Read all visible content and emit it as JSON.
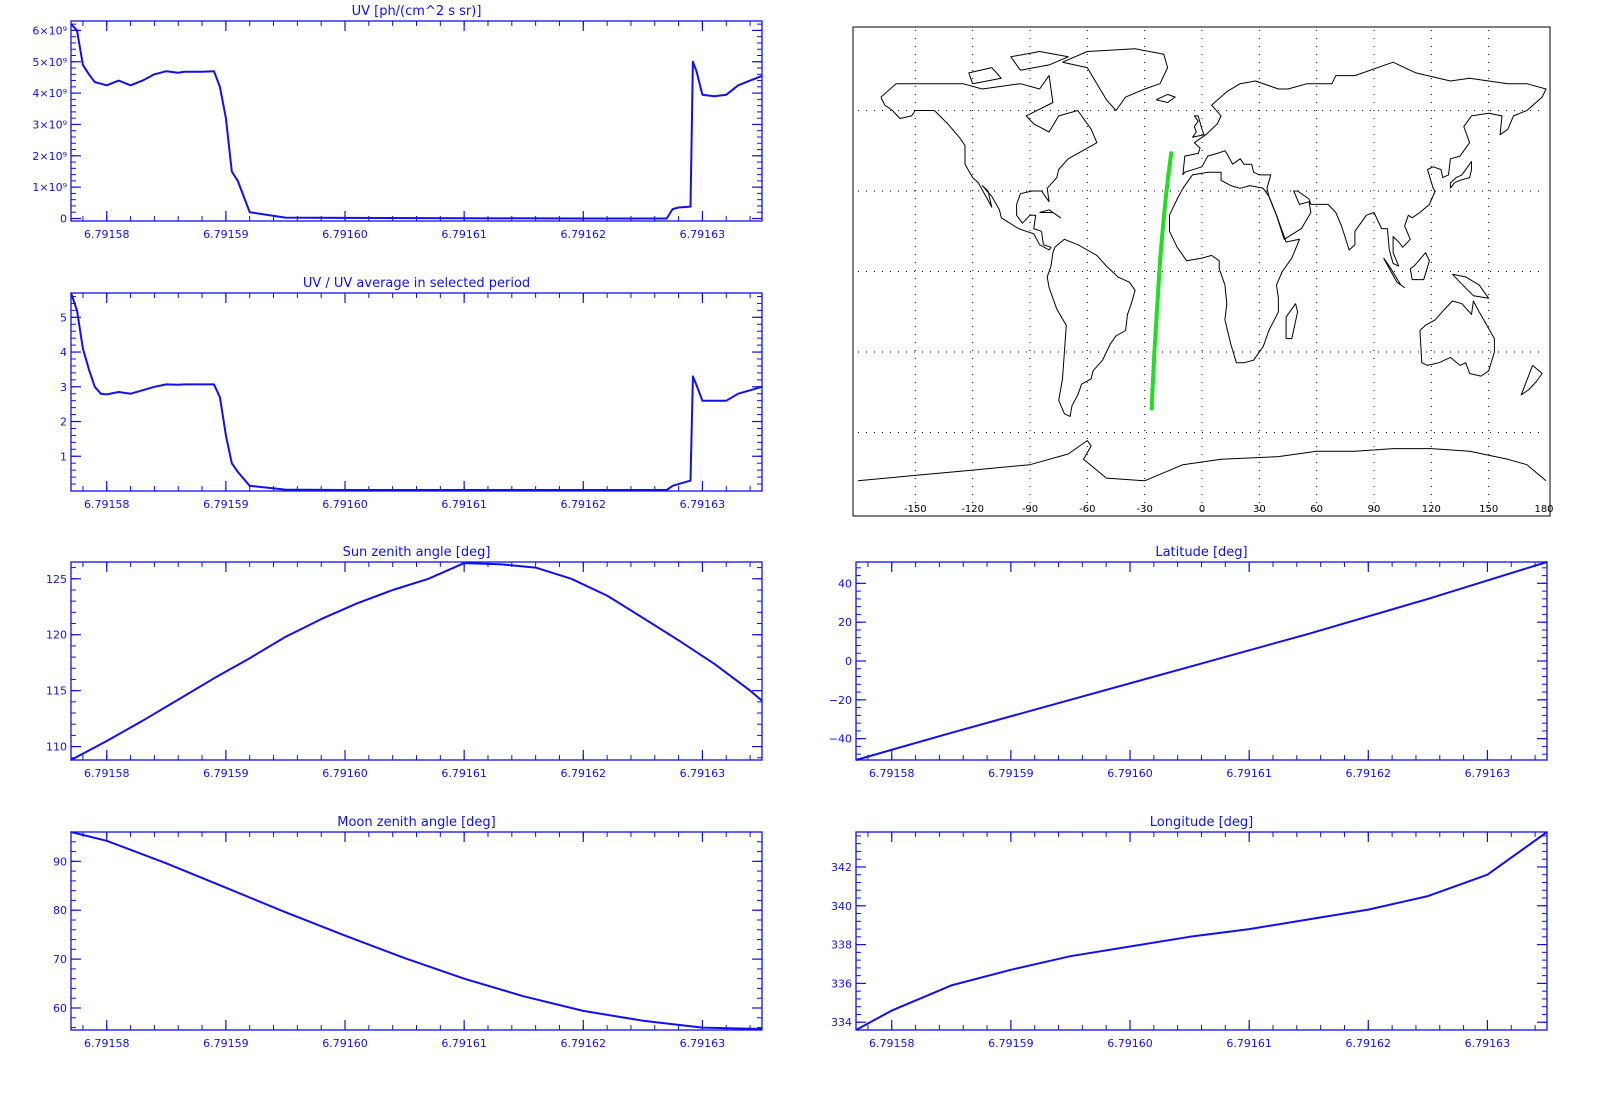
{
  "colors": {
    "plot": "#1010ee",
    "track": "#22dd22",
    "coast": "#000000",
    "grid": "#000000"
  },
  "chart_data": [
    {
      "id": "uv",
      "type": "line",
      "title": "UV [ph/(cm^2 s sr)]",
      "xlabel": "",
      "ylabel": "",
      "xlim": [
        6.791577,
        6.791635
      ],
      "ylim": [
        -80000000,
        6300000000
      ],
      "xticks": [
        6.79158,
        6.79159,
        6.7916,
        6.79161,
        6.79162,
        6.79163
      ],
      "xtick_labels": [
        "6.79158",
        "6.79159",
        "6.79160",
        "6.79161",
        "6.79162",
        "6.79163"
      ],
      "yticks": [
        0,
        1000000000,
        2000000000,
        3000000000,
        4000000000,
        5000000000,
        6000000000
      ],
      "ytick_labels": [
        "0",
        "1×10⁹",
        "2×10⁹",
        "3×10⁹",
        "4×10⁹",
        "5×10⁹",
        "6×10⁹"
      ],
      "grid": false,
      "series": [
        {
          "x": [
            6.791577,
            6.7915775,
            6.791578,
            6.7915785,
            6.791579,
            6.7915795,
            6.79158,
            6.791581,
            6.791582,
            6.791583,
            6.791584,
            6.791585,
            6.791586,
            6.7915865,
            6.791587,
            6.791588,
            6.791589,
            6.7915895,
            6.79159,
            6.7915905,
            6.791591,
            6.791592,
            6.791595,
            6.7916,
            6.79162,
            6.791627,
            6.7916275,
            6.791628,
            6.791629,
            6.7916292,
            6.7916295,
            6.79163,
            6.791631,
            6.791632,
            6.791633,
            6.791634,
            6.791635
          ],
          "y": [
            6200000000,
            6000000000,
            4900000000,
            4600000000,
            4350000000,
            4300000000,
            4250000000,
            4400000000,
            4250000000,
            4400000000,
            4600000000,
            4700000000,
            4650000000,
            4680000000,
            4680000000,
            4680000000,
            4700000000,
            4200000000,
            3200000000,
            1500000000,
            1200000000,
            200000000,
            30000000,
            20000000,
            0,
            0,
            300000000,
            350000000,
            380000000,
            5000000000,
            4700000000,
            3950000000,
            3900000000,
            3950000000,
            4250000000,
            4400000000,
            4550000000
          ]
        }
      ]
    },
    {
      "id": "uvratio",
      "type": "line",
      "title": "UV / UV average in selected period",
      "xlabel": "",
      "ylabel": "",
      "xlim": [
        6.791577,
        6.791635
      ],
      "ylim": [
        0,
        5.7
      ],
      "xticks": [
        6.79158,
        6.79159,
        6.7916,
        6.79161,
        6.79162,
        6.79163
      ],
      "xtick_labels": [
        "6.79158",
        "6.79159",
        "6.79160",
        "6.79161",
        "6.79162",
        "6.79163"
      ],
      "yticks": [
        1,
        2,
        3,
        4,
        5
      ],
      "ytick_labels": [
        "1",
        "2",
        "3",
        "4",
        "5"
      ],
      "grid": false,
      "series": [
        {
          "x": [
            6.791577,
            6.7915775,
            6.791578,
            6.7915785,
            6.791579,
            6.7915795,
            6.79158,
            6.791581,
            6.791582,
            6.791583,
            6.791584,
            6.791585,
            6.791586,
            6.7915865,
            6.791587,
            6.791588,
            6.791589,
            6.7915895,
            6.79159,
            6.7915905,
            6.791591,
            6.791592,
            6.791595,
            6.7916,
            6.79162,
            6.791627,
            6.7916275,
            6.791628,
            6.791629,
            6.7916292,
            6.7916295,
            6.79163,
            6.791631,
            6.791632,
            6.791633,
            6.791634,
            6.791635
          ],
          "y": [
            5.7,
            5.2,
            4.1,
            3.5,
            3.0,
            2.8,
            2.78,
            2.85,
            2.8,
            2.9,
            3.0,
            3.07,
            3.06,
            3.07,
            3.07,
            3.07,
            3.07,
            2.7,
            1.6,
            0.8,
            0.55,
            0.15,
            0.04,
            0.03,
            0.03,
            0.03,
            0.15,
            0.2,
            0.3,
            3.3,
            3.05,
            2.6,
            2.6,
            2.6,
            2.8,
            2.9,
            3.0
          ]
        }
      ]
    },
    {
      "id": "sza",
      "type": "line",
      "title": "Sun zenith angle [deg]",
      "xlabel": "",
      "ylabel": "",
      "xlim": [
        6.791577,
        6.791635
      ],
      "ylim": [
        108.8,
        126.5
      ],
      "xticks": [
        6.79158,
        6.79159,
        6.7916,
        6.79161,
        6.79162,
        6.79163
      ],
      "xtick_labels": [
        "6.79158",
        "6.79159",
        "6.79160",
        "6.79161",
        "6.79162",
        "6.79163"
      ],
      "yticks": [
        110,
        115,
        120,
        125
      ],
      "ytick_labels": [
        "110",
        "115",
        "120",
        "125"
      ],
      "grid": false,
      "series": [
        {
          "x": [
            6.791577,
            6.79158,
            6.791583,
            6.791586,
            6.791589,
            6.791592,
            6.791595,
            6.791598,
            6.791601,
            6.791604,
            6.791607,
            6.79161,
            6.791613,
            6.791616,
            6.791619,
            6.791622,
            6.791625,
            6.791628,
            6.791631,
            6.791634,
            6.791635
          ],
          "y": [
            108.8,
            110.5,
            112.3,
            114.2,
            116.1,
            117.9,
            119.8,
            121.4,
            122.8,
            124.0,
            125.0,
            126.4,
            126.3,
            126.0,
            125.0,
            123.5,
            121.5,
            119.5,
            117.4,
            115.0,
            114.1
          ]
        }
      ]
    },
    {
      "id": "lat",
      "type": "line",
      "title": "Latitude [deg]",
      "xlabel": "",
      "ylabel": "",
      "xlim": [
        6.791577,
        6.791635
      ],
      "ylim": [
        -51,
        51
      ],
      "xticks": [
        6.79158,
        6.79159,
        6.7916,
        6.79161,
        6.79162,
        6.79163
      ],
      "xtick_labels": [
        "6.79158",
        "6.79159",
        "6.79160",
        "6.79161",
        "6.79162",
        "6.79163"
      ],
      "yticks": [
        -40,
        -20,
        0,
        20,
        40
      ],
      "ytick_labels": [
        "−40",
        "−20",
        "0",
        "20",
        "40"
      ],
      "grid": false,
      "series": [
        {
          "x": [
            6.791577,
            6.791585,
            6.791595,
            6.791605,
            6.791615,
            6.791625,
            6.791635
          ],
          "y": [
            -51,
            -37,
            -20,
            -3,
            14,
            32,
            51
          ]
        }
      ]
    },
    {
      "id": "mza",
      "type": "line",
      "title": "Moon zenith angle [deg]",
      "xlabel": "",
      "ylabel": "",
      "xlim": [
        6.791577,
        6.791635
      ],
      "ylim": [
        55.5,
        96
      ],
      "xticks": [
        6.79158,
        6.79159,
        6.7916,
        6.79161,
        6.79162,
        6.79163
      ],
      "xtick_labels": [
        "6.79158",
        "6.79159",
        "6.79160",
        "6.79161",
        "6.79162",
        "6.79163"
      ],
      "yticks": [
        60,
        70,
        80,
        90
      ],
      "ytick_labels": [
        "60",
        "70",
        "80",
        "90"
      ],
      "grid": false,
      "series": [
        {
          "x": [
            6.791577,
            6.79158,
            6.791585,
            6.79159,
            6.791595,
            6.7916,
            6.791605,
            6.79161,
            6.791615,
            6.79162,
            6.791625,
            6.79163,
            6.791635
          ],
          "y": [
            96,
            94.2,
            89.6,
            84.6,
            79.6,
            74.8,
            70.2,
            66.0,
            62.4,
            59.4,
            57.4,
            56.0,
            55.7
          ]
        }
      ]
    },
    {
      "id": "lon",
      "type": "line",
      "title": "Longitude [deg]",
      "xlabel": "",
      "ylabel": "",
      "xlim": [
        6.791577,
        6.791635
      ],
      "ylim": [
        333.6,
        343.8
      ],
      "xticks": [
        6.79158,
        6.79159,
        6.7916,
        6.79161,
        6.79162,
        6.79163
      ],
      "xtick_labels": [
        "6.79158",
        "6.79159",
        "6.79160",
        "6.79161",
        "6.79162",
        "6.79163"
      ],
      "yticks": [
        334,
        336,
        338,
        340,
        342
      ],
      "ytick_labels": [
        "334",
        "336",
        "338",
        "340",
        "342"
      ],
      "grid": false,
      "series": [
        {
          "x": [
            6.791577,
            6.79158,
            6.791585,
            6.79159,
            6.791595,
            6.7916,
            6.791605,
            6.79161,
            6.791615,
            6.79162,
            6.791625,
            6.79163,
            6.791635
          ],
          "y": [
            333.6,
            334.6,
            335.9,
            336.7,
            337.4,
            337.9,
            338.4,
            338.8,
            339.3,
            339.8,
            340.5,
            341.6,
            343.8
          ]
        }
      ]
    },
    {
      "id": "map",
      "type": "scatter",
      "title": "",
      "xlabel": "",
      "ylabel": "",
      "xlim": [
        -180,
        180
      ],
      "ylim": [
        -90,
        90
      ],
      "xticks": [
        -150,
        -120,
        -90,
        -60,
        -30,
        0,
        30,
        60,
        90,
        120,
        150,
        180
      ],
      "xtick_labels": [
        "-150",
        "-120",
        "-90",
        "-60",
        "-30",
        "0",
        "30",
        "60",
        "90",
        "120",
        "150",
        "180"
      ],
      "grid": true,
      "series": [
        {
          "lon": [
            -26.3,
            -25.9,
            -25.4,
            -24.9,
            -24.3,
            -23.7,
            -23.1,
            -22.5,
            -21.8,
            -21.0,
            -20.0,
            -18.9,
            -17.6,
            -16.1
          ],
          "lat": [
            -51,
            -44,
            -37,
            -30,
            -23,
            -16,
            -9,
            -2,
            5,
            12,
            20,
            28,
            36,
            44
          ]
        }
      ]
    }
  ]
}
